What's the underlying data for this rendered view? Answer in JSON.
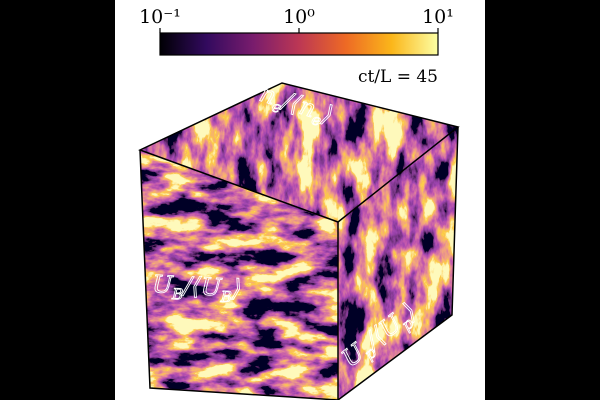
{
  "colorbar": {
    "scale": "log",
    "colormap": "inferno",
    "lim": [
      0.1,
      10
    ],
    "ticks": [
      {
        "value": 0.1,
        "label": "10⁻¹"
      },
      {
        "value": 1,
        "label": "10⁰"
      },
      {
        "value": 10,
        "label": "10¹"
      }
    ]
  },
  "annotation": "ct/L = 45",
  "faces": {
    "top": [
      {
        "text": "n",
        "sub": false
      },
      {
        "text": "e",
        "sub": true
      },
      {
        "text": "/⟨n",
        "sub": false
      },
      {
        "text": "e",
        "sub": true
      },
      {
        "text": "⟩",
        "sub": false
      }
    ],
    "left": [
      {
        "text": "U",
        "sub": false
      },
      {
        "text": "B",
        "sub": true
      },
      {
        "text": "/⟨U",
        "sub": false
      },
      {
        "text": "B",
        "sub": true
      },
      {
        "text": "⟩",
        "sub": false
      }
    ],
    "right": [
      {
        "text": "U",
        "sub": false
      },
      {
        "text": "p",
        "sub": true
      },
      {
        "text": "/⟨U",
        "sub": false
      },
      {
        "text": "p",
        "sub": true
      },
      {
        "text": "⟩",
        "sub": false
      }
    ]
  }
}
